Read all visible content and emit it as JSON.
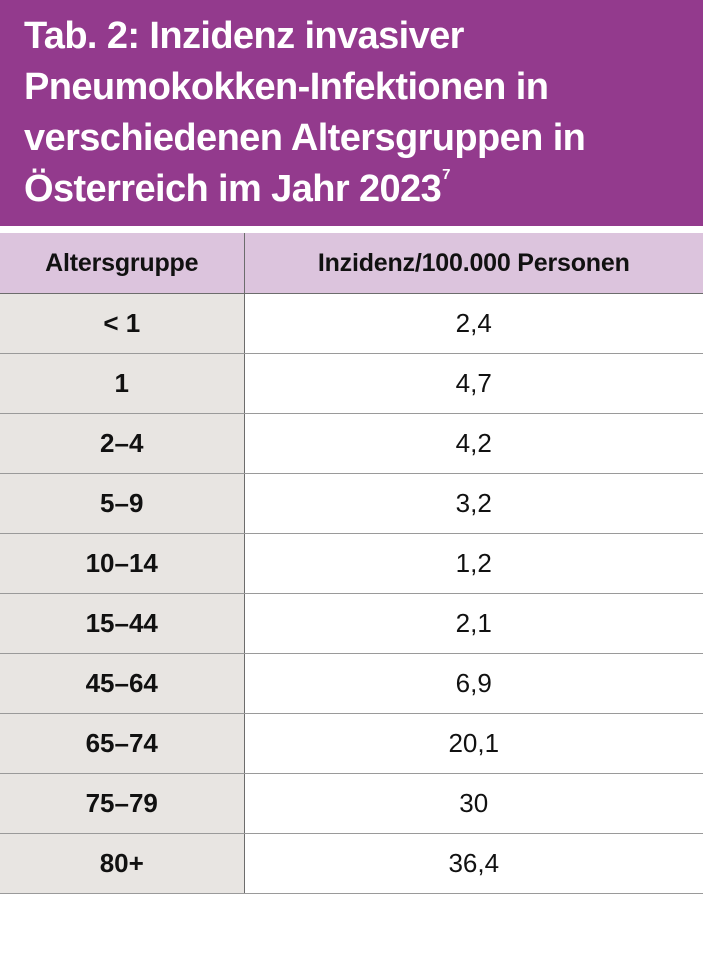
{
  "title": {
    "text": "Tab. 2: Inzidenz invasiver Pneumokokken-Infektionen in verschiedenen Altersgruppen in Österreich im Jahr 2023",
    "line1": "Tab. 2: Inzidenz invasiver",
    "line2": "Pneumokokken-Infektionen in",
    "line3": "verschiedenen Altersgruppen in",
    "line4": "Österreich im Jahr 2023",
    "superscript": "7"
  },
  "colors": {
    "header_bg": "#933a8d",
    "column_header_bg": "#dcc4dd",
    "age_column_bg": "#e8e5e2"
  },
  "table": {
    "columns": [
      "Altersgruppe",
      "Inzidenz/100.000 Personen"
    ],
    "rows": [
      {
        "age": "< 1",
        "value": "2,4"
      },
      {
        "age": "1",
        "value": "4,7"
      },
      {
        "age": "2–4",
        "value": "4,2"
      },
      {
        "age": "5–9",
        "value": "3,2"
      },
      {
        "age": "10–14",
        "value": "1,2"
      },
      {
        "age": "15–44",
        "value": "2,1"
      },
      {
        "age": "45–64",
        "value": "6,9"
      },
      {
        "age": "65–74",
        "value": "20,1"
      },
      {
        "age": "75–79",
        "value": "30"
      },
      {
        "age": "80+",
        "value": "36,4"
      }
    ]
  }
}
